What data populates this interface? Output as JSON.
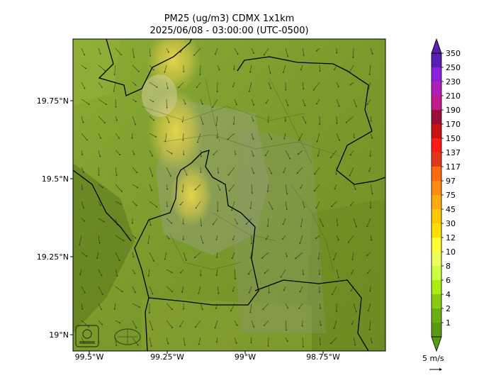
{
  "title_line1": "PM25 (ug/m3) CDMX 1x1km",
  "title_line2": "2025/06/08 - 03:00:00 (UTC-0500)",
  "x_ticks": [
    "99.5°W",
    "99.25°W",
    "99°W",
    "98.75°W"
  ],
  "y_ticks": [
    "19.75°N",
    "19.5°N",
    "19.25°N",
    "19°N"
  ],
  "colorbar": {
    "labels": [
      "350",
      "250",
      "230",
      "210",
      "190",
      "170",
      "150",
      "137",
      "117",
      "97",
      "75",
      "45",
      "30",
      "12",
      "10",
      "8",
      "6",
      "4",
      "2",
      "1"
    ],
    "colors": [
      "#5a1fb0",
      "#8a1fe0",
      "#b01fb8",
      "#c21a8a",
      "#9a0f3a",
      "#cc1010",
      "#ff1a1a",
      "#e03a1a",
      "#ff6a10",
      "#ff8a10",
      "#ffaa10",
      "#ffc800",
      "#ffe000",
      "#ffff30",
      "#eeff60",
      "#ccff40",
      "#aaee10",
      "#88cc10",
      "#6ab010",
      "#5a9a10"
    ],
    "over_color": "#5a1fb0",
    "under_color": "#5a9a10"
  },
  "wind_reference_label": "5 m/s",
  "map_colors": {
    "base": "#7d9d2e",
    "high": "#c8c850",
    "dark": "#5a7a1e"
  }
}
